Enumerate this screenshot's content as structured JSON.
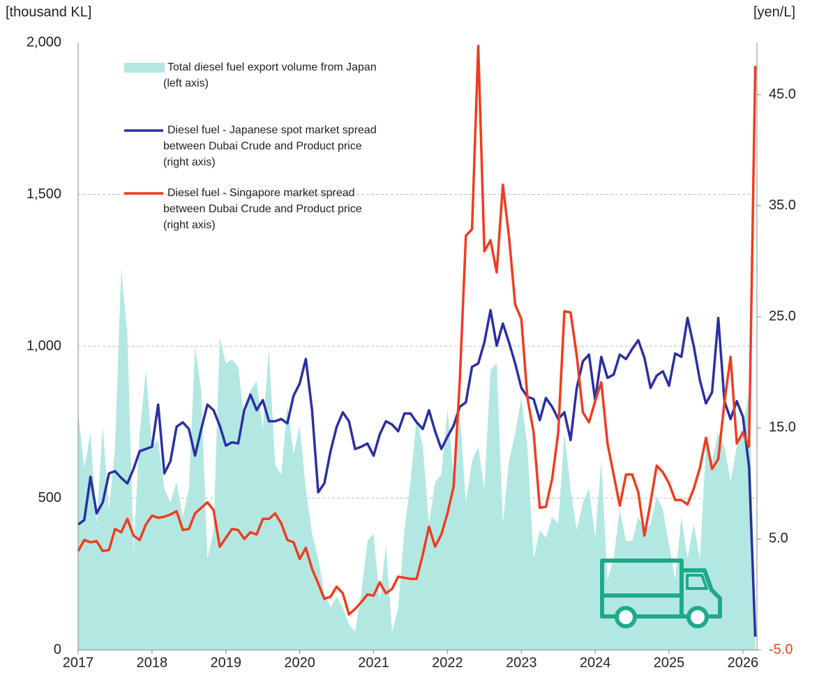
{
  "chart_data": {
    "type": "area-line-dual",
    "y_label": "[thousand KL]",
    "y2_label": "[yen/L]",
    "xlim": [
      2017,
      2026.19
    ],
    "xticks": [
      2017,
      2018,
      2019,
      2020,
      2021,
      2022,
      2023,
      2024,
      2025,
      2026
    ],
    "ylim": [
      0,
      2000
    ],
    "yticks": [
      0,
      500,
      {
        "value": 1000,
        "label": "1,000"
      },
      {
        "value": 1500,
        "label": "1,500"
      },
      {
        "value": 2000,
        "label": "2,000"
      }
    ],
    "y2lim": [
      -5,
      49.7
    ],
    "y2ticks": [
      {
        "value": -5,
        "label": "-5.0"
      },
      {
        "value": 5,
        "label": "5.0"
      },
      {
        "value": 15,
        "label": "15.0"
      },
      {
        "value": 25,
        "label": "25.0"
      },
      {
        "value": 35,
        "label": "35.0"
      },
      {
        "value": 45,
        "label": "45.0"
      }
    ],
    "grid": true,
    "x": [
      2017,
      2017.083,
      2017.167,
      2017.25,
      2017.333,
      2017.417,
      2017.5,
      2017.583,
      2017.667,
      2017.75,
      2017.833,
      2017.917,
      2018,
      2018.083,
      2018.167,
      2018.25,
      2018.333,
      2018.417,
      2018.5,
      2018.583,
      2018.667,
      2018.75,
      2018.833,
      2018.917,
      2019,
      2019.083,
      2019.167,
      2019.25,
      2019.333,
      2019.417,
      2019.5,
      2019.583,
      2019.667,
      2019.75,
      2019.833,
      2019.917,
      2020,
      2020.083,
      2020.167,
      2020.25,
      2020.333,
      2020.417,
      2020.5,
      2020.583,
      2020.667,
      2020.75,
      2020.833,
      2020.917,
      2021,
      2021.083,
      2021.167,
      2021.25,
      2021.333,
      2021.417,
      2021.5,
      2021.583,
      2021.667,
      2021.75,
      2021.833,
      2021.917,
      2022,
      2022.083,
      2022.167,
      2022.25,
      2022.333,
      2022.417,
      2022.5,
      2022.583,
      2022.667,
      2022.75,
      2022.833,
      2022.917,
      2023,
      2023.083,
      2023.167,
      2023.25,
      2023.333,
      2023.417,
      2023.5,
      2023.583,
      2023.667,
      2023.75,
      2023.833,
      2023.917,
      2024,
      2024.083,
      2024.167,
      2024.25,
      2024.333,
      2024.417,
      2024.5,
      2024.583,
      2024.667,
      2024.75,
      2024.833,
      2024.917,
      2025,
      2025.083,
      2025.167,
      2025.25,
      2025.333,
      2025.417,
      2025.5,
      2025.583,
      2025.667,
      2025.75,
      2025.833,
      2025.917,
      2026,
      2026.083,
      2026.167
    ],
    "series": [
      {
        "name": "Total diesel fuel export volume from Japan\n(left axis)",
        "kind": "area",
        "axis": "y",
        "color": "#b3e8e2",
        "values": [
          783,
          600,
          715,
          416,
          738,
          462,
          669,
          1255,
          1037,
          324,
          715,
          922,
          669,
          692,
          531,
          485,
          554,
          439,
          531,
          1002,
          853,
          301,
          393,
          1030,
          945,
          956,
          933,
          761,
          853,
          887,
          726,
          991,
          611,
          577,
          807,
          646,
          738,
          531,
          382,
          301,
          186,
          140,
          175,
          140,
          83,
          60,
          186,
          359,
          382,
          163,
          347,
          60,
          140,
          393,
          554,
          761,
          669,
          416,
          554,
          577,
          795,
          566,
          784,
          485,
          623,
          669,
          531,
          922,
          945,
          416,
          623,
          715,
          830,
          669,
          301,
          393,
          370,
          439,
          416,
          715,
          531,
          393,
          485,
          531,
          370,
          623,
          232,
          301,
          462,
          359,
          359,
          439,
          393,
          416,
          508,
          462,
          347,
          232,
          439,
          301,
          416,
          301,
          669,
          623,
          715,
          669,
          554,
          669,
          738,
          853,
          94
        ]
      },
      {
        "name": "Diesel fuel - Japanese spot market spread\nbetween Dubai Crude and Product price\n(right axis)",
        "kind": "line",
        "axis": "y2",
        "color": "#2b2fa3",
        "values": [
          6.3,
          6.7,
          10.6,
          7.3,
          8.3,
          10.9,
          11.1,
          10.5,
          10.0,
          11.3,
          12.9,
          13.1,
          13.3,
          17.1,
          10.9,
          12.0,
          15.1,
          15.5,
          14.9,
          12.5,
          14.9,
          17.1,
          16.6,
          15.2,
          13.4,
          13.7,
          13.6,
          16.6,
          18.0,
          16.6,
          17.5,
          15.6,
          15.6,
          15.8,
          15.4,
          17.9,
          19.0,
          21.2,
          16.6,
          9.2,
          10.0,
          12.9,
          15.1,
          16.4,
          15.6,
          13.1,
          13.3,
          13.6,
          12.5,
          14.4,
          15.6,
          15.3,
          14.7,
          16.3,
          16.3,
          15.5,
          14.9,
          16.6,
          14.7,
          13.1,
          14.2,
          15.2,
          16.9,
          17.3,
          20.5,
          20.8,
          22.7,
          25.6,
          22.4,
          24.4,
          22.7,
          20.8,
          18.6,
          17.8,
          17.6,
          15.7,
          17.7,
          16.9,
          15.8,
          16.4,
          13.9,
          18.6,
          21.0,
          21.6,
          17.5,
          21.4,
          19.5,
          19.8,
          21.6,
          21.2,
          22.1,
          22.9,
          21.3,
          18.6,
          19.7,
          20.1,
          18.8,
          21.7,
          21.4,
          24.9,
          22.4,
          19.3,
          17.2,
          18.2,
          24.9,
          17.4,
          15.8,
          17.4,
          16.0,
          11.5,
          -3.8
        ]
      },
      {
        "name": "Diesel fuel - Singapore market spread\nbetween Dubai Crude and Product price\n(right axis)",
        "kind": "line",
        "axis": "y2",
        "color": "#f03c1e",
        "values": [
          3.9,
          4.9,
          4.7,
          4.8,
          3.9,
          4.0,
          5.9,
          5.6,
          6.8,
          5.3,
          4.9,
          6.3,
          7.1,
          6.9,
          7.0,
          7.2,
          7.5,
          5.8,
          5.9,
          7.3,
          7.8,
          8.3,
          7.6,
          4.3,
          5.1,
          5.9,
          5.8,
          5.0,
          5.6,
          5.4,
          6.8,
          6.8,
          7.3,
          6.4,
          4.9,
          4.7,
          3.2,
          4.2,
          2.3,
          1.0,
          -0.4,
          -0.2,
          0.7,
          0.1,
          -1.8,
          -1.3,
          -0.7,
          0.0,
          -0.1,
          1.1,
          0.1,
          0.5,
          1.6,
          1.5,
          1.4,
          1.4,
          3.6,
          6.1,
          4.3,
          5.4,
          7.3,
          9.7,
          19.3,
          32.3,
          32.9,
          49.4,
          30.9,
          31.9,
          29.0,
          36.9,
          32.2,
          26.1,
          24.8,
          17.7,
          14.6,
          7.8,
          7.9,
          10.4,
          14.6,
          25.5,
          25.4,
          21.5,
          16.4,
          15.5,
          17.4,
          19.1,
          13.6,
          10.8,
          8.0,
          10.8,
          10.8,
          9.2,
          5.3,
          8.3,
          11.6,
          11.0,
          10.0,
          8.5,
          8.5,
          8.1,
          9.5,
          11.4,
          14.1,
          11.3,
          12.2,
          17.3,
          21.4,
          13.6,
          14.6,
          13.3,
          47.6
        ]
      }
    ]
  }
}
